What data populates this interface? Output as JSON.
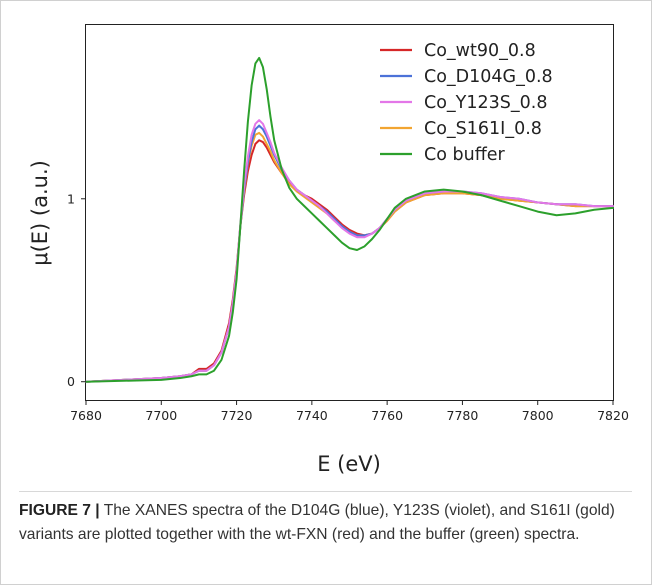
{
  "chart_data": {
    "type": "line",
    "xlabel": "E (eV)",
    "ylabel": "μ(E) (a.u.)",
    "xlim": [
      7680,
      7820
    ],
    "ylim": [
      -0.1,
      1.95
    ],
    "xticks": [
      "7680",
      "7700",
      "7720",
      "7740",
      "7760",
      "7780",
      "7800",
      "7820"
    ],
    "xtick_values": [
      7680,
      7700,
      7720,
      7740,
      7760,
      7780,
      7800,
      7820
    ],
    "yticks": [
      "0",
      "1"
    ],
    "ytick_values": [
      0,
      1
    ],
    "legend_position": "top-right",
    "series": [
      {
        "name": "Co_wt90_0.8",
        "color": "#d62728",
        "x": [
          7680,
          7690,
          7700,
          7705,
          7708,
          7710,
          7712,
          7714,
          7716,
          7718,
          7719,
          7720,
          7721,
          7722,
          7723,
          7724,
          7725,
          7726,
          7727,
          7728,
          7729,
          7730,
          7732,
          7734,
          7736,
          7738,
          7740,
          7742,
          7744,
          7746,
          7748,
          7750,
          7752,
          7754,
          7756,
          7758,
          7760,
          7762,
          7765,
          7770,
          7775,
          7780,
          7785,
          7790,
          7795,
          7800,
          7805,
          7810,
          7815,
          7820
        ],
        "y": [
          0.0,
          0.01,
          0.02,
          0.03,
          0.04,
          0.07,
          0.07,
          0.1,
          0.17,
          0.32,
          0.45,
          0.62,
          0.85,
          1.02,
          1.15,
          1.24,
          1.3,
          1.32,
          1.31,
          1.28,
          1.24,
          1.2,
          1.14,
          1.09,
          1.05,
          1.02,
          1.0,
          0.97,
          0.94,
          0.9,
          0.86,
          0.83,
          0.81,
          0.8,
          0.81,
          0.84,
          0.88,
          0.93,
          0.98,
          1.02,
          1.03,
          1.03,
          1.02,
          1.0,
          0.99,
          0.98,
          0.97,
          0.96,
          0.96,
          0.96
        ]
      },
      {
        "name": "Co_D104G_0.8",
        "color": "#4c72d8",
        "x": [
          7680,
          7690,
          7700,
          7705,
          7708,
          7710,
          7712,
          7714,
          7716,
          7718,
          7719,
          7720,
          7721,
          7722,
          7723,
          7724,
          7725,
          7726,
          7727,
          7728,
          7729,
          7730,
          7732,
          7734,
          7736,
          7738,
          7740,
          7742,
          7744,
          7746,
          7748,
          7750,
          7752,
          7754,
          7756,
          7758,
          7760,
          7762,
          7765,
          7770,
          7775,
          7780,
          7785,
          7790,
          7795,
          7800,
          7805,
          7810,
          7815,
          7820
        ],
        "y": [
          0.0,
          0.01,
          0.02,
          0.03,
          0.04,
          0.06,
          0.06,
          0.09,
          0.16,
          0.3,
          0.43,
          0.6,
          0.85,
          1.05,
          1.2,
          1.31,
          1.38,
          1.4,
          1.38,
          1.34,
          1.29,
          1.24,
          1.16,
          1.1,
          1.05,
          1.02,
          0.99,
          0.96,
          0.93,
          0.89,
          0.85,
          0.82,
          0.8,
          0.8,
          0.81,
          0.84,
          0.89,
          0.94,
          0.99,
          1.03,
          1.04,
          1.04,
          1.03,
          1.01,
          1.0,
          0.98,
          0.97,
          0.97,
          0.96,
          0.96
        ]
      },
      {
        "name": "Co_Y123S_0.8",
        "color": "#e377e8",
        "x": [
          7680,
          7690,
          7700,
          7705,
          7708,
          7710,
          7712,
          7714,
          7716,
          7718,
          7719,
          7720,
          7721,
          7722,
          7723,
          7724,
          7725,
          7726,
          7727,
          7728,
          7729,
          7730,
          7732,
          7734,
          7736,
          7738,
          7740,
          7742,
          7744,
          7746,
          7748,
          7750,
          7752,
          7754,
          7756,
          7758,
          7760,
          7762,
          7765,
          7770,
          7775,
          7780,
          7785,
          7790,
          7795,
          7800,
          7805,
          7810,
          7815,
          7820
        ],
        "y": [
          0.0,
          0.01,
          0.02,
          0.03,
          0.04,
          0.06,
          0.06,
          0.09,
          0.16,
          0.3,
          0.43,
          0.6,
          0.86,
          1.07,
          1.23,
          1.35,
          1.41,
          1.43,
          1.41,
          1.36,
          1.31,
          1.25,
          1.17,
          1.1,
          1.05,
          1.02,
          0.99,
          0.96,
          0.92,
          0.88,
          0.84,
          0.81,
          0.79,
          0.79,
          0.81,
          0.84,
          0.89,
          0.94,
          0.99,
          1.03,
          1.04,
          1.04,
          1.03,
          1.01,
          1.0,
          0.98,
          0.97,
          0.97,
          0.96,
          0.96
        ]
      },
      {
        "name": "Co_S161I_0.8",
        "color": "#f2a531",
        "x": [
          7680,
          7690,
          7700,
          7705,
          7708,
          7710,
          7712,
          7714,
          7716,
          7718,
          7719,
          7720,
          7721,
          7722,
          7723,
          7724,
          7725,
          7726,
          7727,
          7728,
          7729,
          7730,
          7732,
          7734,
          7736,
          7738,
          7740,
          7742,
          7744,
          7746,
          7748,
          7750,
          7752,
          7754,
          7756,
          7758,
          7760,
          7762,
          7765,
          7770,
          7775,
          7780,
          7785,
          7790,
          7795,
          7800,
          7805,
          7810,
          7815,
          7820
        ],
        "y": [
          0.0,
          0.01,
          0.02,
          0.03,
          0.04,
          0.06,
          0.06,
          0.09,
          0.16,
          0.3,
          0.43,
          0.6,
          0.85,
          1.04,
          1.19,
          1.29,
          1.35,
          1.36,
          1.34,
          1.3,
          1.26,
          1.21,
          1.14,
          1.08,
          1.04,
          1.01,
          0.98,
          0.95,
          0.92,
          0.88,
          0.85,
          0.82,
          0.8,
          0.8,
          0.81,
          0.84,
          0.88,
          0.93,
          0.98,
          1.02,
          1.03,
          1.03,
          1.02,
          1.0,
          0.99,
          0.98,
          0.97,
          0.96,
          0.96,
          0.96
        ]
      },
      {
        "name": "Co buffer",
        "color": "#2ca02c",
        "x": [
          7680,
          7690,
          7700,
          7705,
          7708,
          7710,
          7712,
          7714,
          7716,
          7718,
          7719,
          7720,
          7721,
          7722,
          7723,
          7724,
          7725,
          7726,
          7727,
          7728,
          7729,
          7730,
          7732,
          7734,
          7736,
          7738,
          7740,
          7742,
          7744,
          7746,
          7748,
          7750,
          7752,
          7754,
          7756,
          7758,
          7760,
          7762,
          7765,
          7770,
          7775,
          7780,
          7785,
          7790,
          7795,
          7800,
          7805,
          7810,
          7815,
          7820
        ],
        "y": [
          0.0,
          0.005,
          0.01,
          0.02,
          0.03,
          0.04,
          0.04,
          0.06,
          0.12,
          0.25,
          0.38,
          0.56,
          0.85,
          1.15,
          1.42,
          1.62,
          1.74,
          1.77,
          1.72,
          1.6,
          1.45,
          1.32,
          1.16,
          1.06,
          1.0,
          0.96,
          0.92,
          0.88,
          0.84,
          0.8,
          0.76,
          0.73,
          0.72,
          0.74,
          0.78,
          0.83,
          0.89,
          0.95,
          1.0,
          1.04,
          1.05,
          1.04,
          1.02,
          0.99,
          0.96,
          0.93,
          0.91,
          0.92,
          0.94,
          0.95
        ]
      }
    ]
  },
  "caption": {
    "label": "FIGURE 7",
    "separator": "|",
    "text": "The XANES spectra of the D104G (blue), Y123S (violet), and S161I (gold) variants are plotted together with the wt-FXN (red) and the buffer (green) spectra."
  }
}
